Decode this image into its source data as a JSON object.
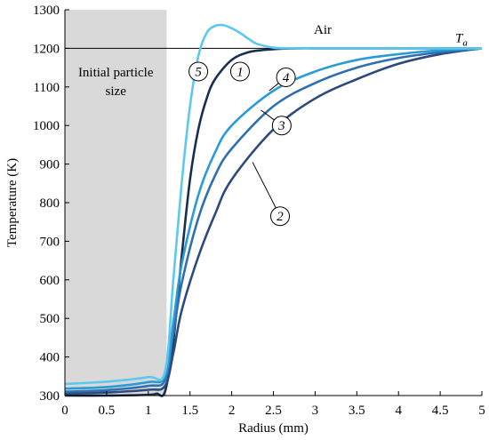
{
  "chart_data": {
    "type": "line",
    "xlabel": "Radius (mm)",
    "ylabel": "Temperature (K)",
    "xlim": [
      0,
      5
    ],
    "ylim": [
      300,
      1300
    ],
    "xticks": [
      "0",
      "0.5",
      "1",
      "1.5",
      "2",
      "2.5",
      "3",
      "3.5",
      "4",
      "4.5",
      "5"
    ],
    "yticks": [
      "300",
      "400",
      "500",
      "600",
      "700",
      "800",
      "900",
      "1000",
      "1100",
      "1200",
      "1300"
    ],
    "grid": false,
    "shaded_region": {
      "label": "Initial particle size",
      "label_lines": [
        "Initial particle",
        "size"
      ],
      "x_range": [
        0,
        1.22
      ],
      "color": "#d9d9d9"
    },
    "reference_line": {
      "y": 1200,
      "label": "Ta",
      "label_main": "T",
      "label_sub": "a"
    },
    "annotations": [
      "Air"
    ],
    "series": [
      {
        "name": "1",
        "color": "#1a2e4f",
        "x": [
          0,
          0.5,
          1.0,
          1.1,
          1.2,
          1.3,
          1.4,
          1.5,
          1.6,
          1.7,
          1.8,
          2.0,
          2.2,
          2.4,
          2.6,
          2.8,
          3.0,
          3.5,
          4.0,
          4.5,
          5.0
        ],
        "y": [
          300,
          300,
          302,
          305,
          310,
          440,
          660,
          860,
          990,
          1070,
          1120,
          1170,
          1190,
          1196,
          1199,
          1200,
          1200,
          1200,
          1200,
          1200,
          1200
        ]
      },
      {
        "name": "2",
        "color": "#2c4a7c",
        "x": [
          0,
          0.5,
          1.0,
          1.2,
          1.3,
          1.4,
          1.6,
          1.8,
          2.0,
          2.5,
          3.0,
          3.5,
          4.0,
          4.5,
          5.0
        ],
        "y": [
          305,
          308,
          315,
          325,
          410,
          520,
          660,
          770,
          860,
          990,
          1070,
          1120,
          1160,
          1185,
          1200
        ]
      },
      {
        "name": "3",
        "color": "#2f6fb0",
        "x": [
          0,
          0.5,
          1.0,
          1.2,
          1.3,
          1.4,
          1.6,
          1.8,
          2.0,
          2.5,
          3.0,
          3.5,
          4.0,
          4.5,
          5.0
        ],
        "y": [
          310,
          314,
          325,
          340,
          460,
          590,
          760,
          870,
          940,
          1050,
          1110,
          1150,
          1175,
          1190,
          1200
        ]
      },
      {
        "name": "4",
        "color": "#2a9bd6",
        "x": [
          0,
          0.5,
          1.0,
          1.2,
          1.3,
          1.4,
          1.6,
          1.8,
          2.0,
          2.5,
          3.0,
          3.5,
          4.0,
          4.5,
          5.0
        ],
        "y": [
          318,
          322,
          335,
          350,
          490,
          640,
          820,
          930,
          1000,
          1090,
          1140,
          1170,
          1185,
          1195,
          1200
        ]
      },
      {
        "name": "5",
        "color": "#5cc8ee",
        "x": [
          0,
          0.5,
          1.0,
          1.2,
          1.3,
          1.4,
          1.5,
          1.6,
          1.7,
          1.8,
          1.9,
          2.0,
          2.1,
          2.2,
          2.3,
          2.5,
          2.7,
          3.0,
          3.5,
          4.0,
          5.0
        ],
        "y": [
          330,
          336,
          348,
          362,
          600,
          850,
          1050,
          1180,
          1240,
          1258,
          1260,
          1252,
          1240,
          1225,
          1212,
          1202,
          1200,
          1200,
          1200,
          1200,
          1200
        ]
      }
    ],
    "curve_labels": [
      {
        "series": "5",
        "text": "5",
        "x": 1.6,
        "y": 1140
      },
      {
        "series": "1",
        "text": "1",
        "x": 2.1,
        "y": 1140
      },
      {
        "series": "4",
        "text": "4",
        "x": 2.65,
        "y": 1125,
        "pointer_to": [
          2.45,
          1090
        ]
      },
      {
        "series": "3",
        "text": "3",
        "x": 2.6,
        "y": 1000,
        "pointer_to": [
          2.35,
          1040
        ]
      },
      {
        "series": "2",
        "text": "2",
        "x": 2.58,
        "y": 765,
        "pointer_to": [
          2.25,
          905
        ]
      }
    ]
  }
}
